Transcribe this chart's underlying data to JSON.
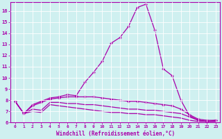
{
  "title": "",
  "xlabel": "Windchill (Refroidissement éolien,°C)",
  "ylabel": "",
  "background_color": "#cff0f0",
  "line_color": "#aa00aa",
  "xlim": [
    -0.5,
    23.5
  ],
  "ylim": [
    6,
    16.8
  ],
  "yticks": [
    6,
    7,
    8,
    9,
    10,
    11,
    12,
    13,
    14,
    15,
    16
  ],
  "xticks": [
    0,
    1,
    2,
    3,
    4,
    5,
    6,
    7,
    8,
    9,
    10,
    11,
    12,
    13,
    14,
    15,
    16,
    17,
    18,
    19,
    20,
    21,
    22,
    23
  ],
  "curve1_x": [
    0,
    1,
    2,
    3,
    4,
    5,
    6,
    7,
    8,
    9,
    10,
    11,
    12,
    13,
    14,
    15,
    16,
    17,
    18,
    19,
    20,
    21,
    22,
    23
  ],
  "curve1_y": [
    7.9,
    6.8,
    7.6,
    7.9,
    8.2,
    8.3,
    8.5,
    8.4,
    9.6,
    10.5,
    11.5,
    13.1,
    13.6,
    14.6,
    16.3,
    16.6,
    14.3,
    10.8,
    10.2,
    8.0,
    6.6,
    6.2,
    6.1,
    6.2
  ],
  "curve2_x": [
    0,
    1,
    2,
    3,
    4,
    5,
    6,
    7,
    8,
    9,
    10,
    11,
    12,
    13,
    14,
    15,
    16,
    17,
    18,
    19,
    20,
    21,
    22,
    23
  ],
  "curve2_y": [
    7.9,
    6.8,
    7.5,
    7.8,
    8.1,
    8.2,
    8.3,
    8.3,
    8.3,
    8.3,
    8.2,
    8.1,
    8.0,
    7.9,
    7.9,
    7.8,
    7.7,
    7.6,
    7.5,
    7.2,
    6.7,
    6.3,
    6.2,
    6.2
  ],
  "curve3_x": [
    0,
    1,
    2,
    3,
    4,
    5,
    6,
    7,
    8,
    9,
    10,
    11,
    12,
    13,
    14,
    15,
    16,
    17,
    18,
    19,
    20,
    21,
    22,
    23
  ],
  "curve3_y": [
    7.9,
    6.8,
    7.2,
    7.1,
    7.8,
    7.8,
    7.7,
    7.7,
    7.6,
    7.6,
    7.5,
    7.4,
    7.3,
    7.2,
    7.2,
    7.1,
    7.1,
    7.0,
    6.9,
    6.8,
    6.5,
    6.2,
    6.1,
    6.1
  ],
  "curve4_x": [
    0,
    1,
    2,
    3,
    4,
    5,
    6,
    7,
    8,
    9,
    10,
    11,
    12,
    13,
    14,
    15,
    16,
    17,
    18,
    19,
    20,
    21,
    22,
    23
  ],
  "curve4_y": [
    7.9,
    6.8,
    7.0,
    6.9,
    7.6,
    7.5,
    7.4,
    7.3,
    7.2,
    7.1,
    7.0,
    6.9,
    6.9,
    6.8,
    6.8,
    6.7,
    6.7,
    6.6,
    6.5,
    6.4,
    6.2,
    6.1,
    6.1,
    6.1
  ]
}
